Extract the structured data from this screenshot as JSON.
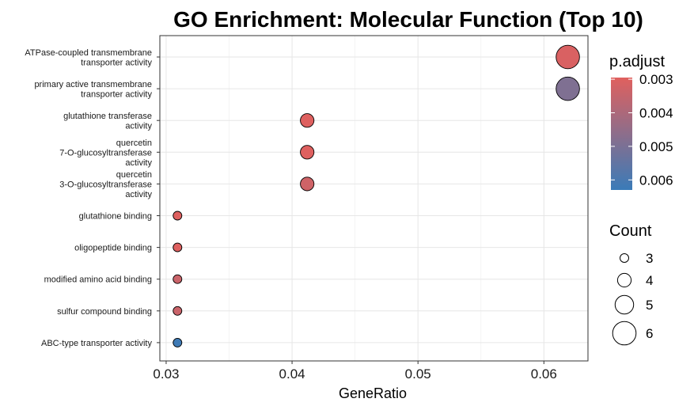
{
  "chart_data": {
    "type": "scatter",
    "title": "GO Enrichment: Molecular Function (Top 10)",
    "xlabel": "GeneRatio",
    "ylabel": "",
    "xlim": [
      0.0295,
      0.0635
    ],
    "xticks": [
      "0.03",
      "0.04",
      "0.05",
      "0.06"
    ],
    "xtick_values": [
      0.03,
      0.04,
      0.05,
      0.06
    ],
    "grid": true,
    "points": [
      {
        "label": "ATPase-coupled transmembrane\ntransporter activity",
        "x": 0.0619,
        "count": 6,
        "p_adjust": 0.0031
      },
      {
        "label": "primary active transmembrane\ntransporter activity",
        "x": 0.0619,
        "count": 6,
        "p_adjust": 0.0049
      },
      {
        "label": "glutathione transferase\nactivity",
        "x": 0.0412,
        "count": 4,
        "p_adjust": 0.003
      },
      {
        "label": "quercetin\n7-O-glucosyltransferase\nactivity",
        "x": 0.0412,
        "count": 4,
        "p_adjust": 0.003
      },
      {
        "label": "quercetin\n3-O-glucosyltransferase\nactivity",
        "x": 0.0412,
        "count": 4,
        "p_adjust": 0.0033
      },
      {
        "label": "glutathione binding",
        "x": 0.0309,
        "count": 3,
        "p_adjust": 0.003
      },
      {
        "label": "oligopeptide binding",
        "x": 0.0309,
        "count": 3,
        "p_adjust": 0.003
      },
      {
        "label": "modified amino acid binding",
        "x": 0.0309,
        "count": 3,
        "p_adjust": 0.0034
      },
      {
        "label": "sulfur compound binding",
        "x": 0.0309,
        "count": 3,
        "p_adjust": 0.0034
      },
      {
        "label": "ABC-type transporter activity",
        "x": 0.0309,
        "count": 3,
        "p_adjust": 0.0062
      }
    ],
    "color_legend": {
      "title": "p.adjust",
      "ticks": [
        "0.003",
        "0.004",
        "0.005",
        "0.006"
      ],
      "tick_values": [
        0.003,
        0.004,
        0.005,
        0.006
      ],
      "range": [
        0.00295,
        0.0063
      ],
      "low_color": "#e0605e",
      "high_color": "#3a7bb8"
    },
    "size_legend": {
      "title": "Count",
      "values": [
        3,
        4,
        5,
        6
      ],
      "labels": [
        "3",
        "4",
        "5",
        "6"
      ]
    },
    "legend_position": "right"
  }
}
